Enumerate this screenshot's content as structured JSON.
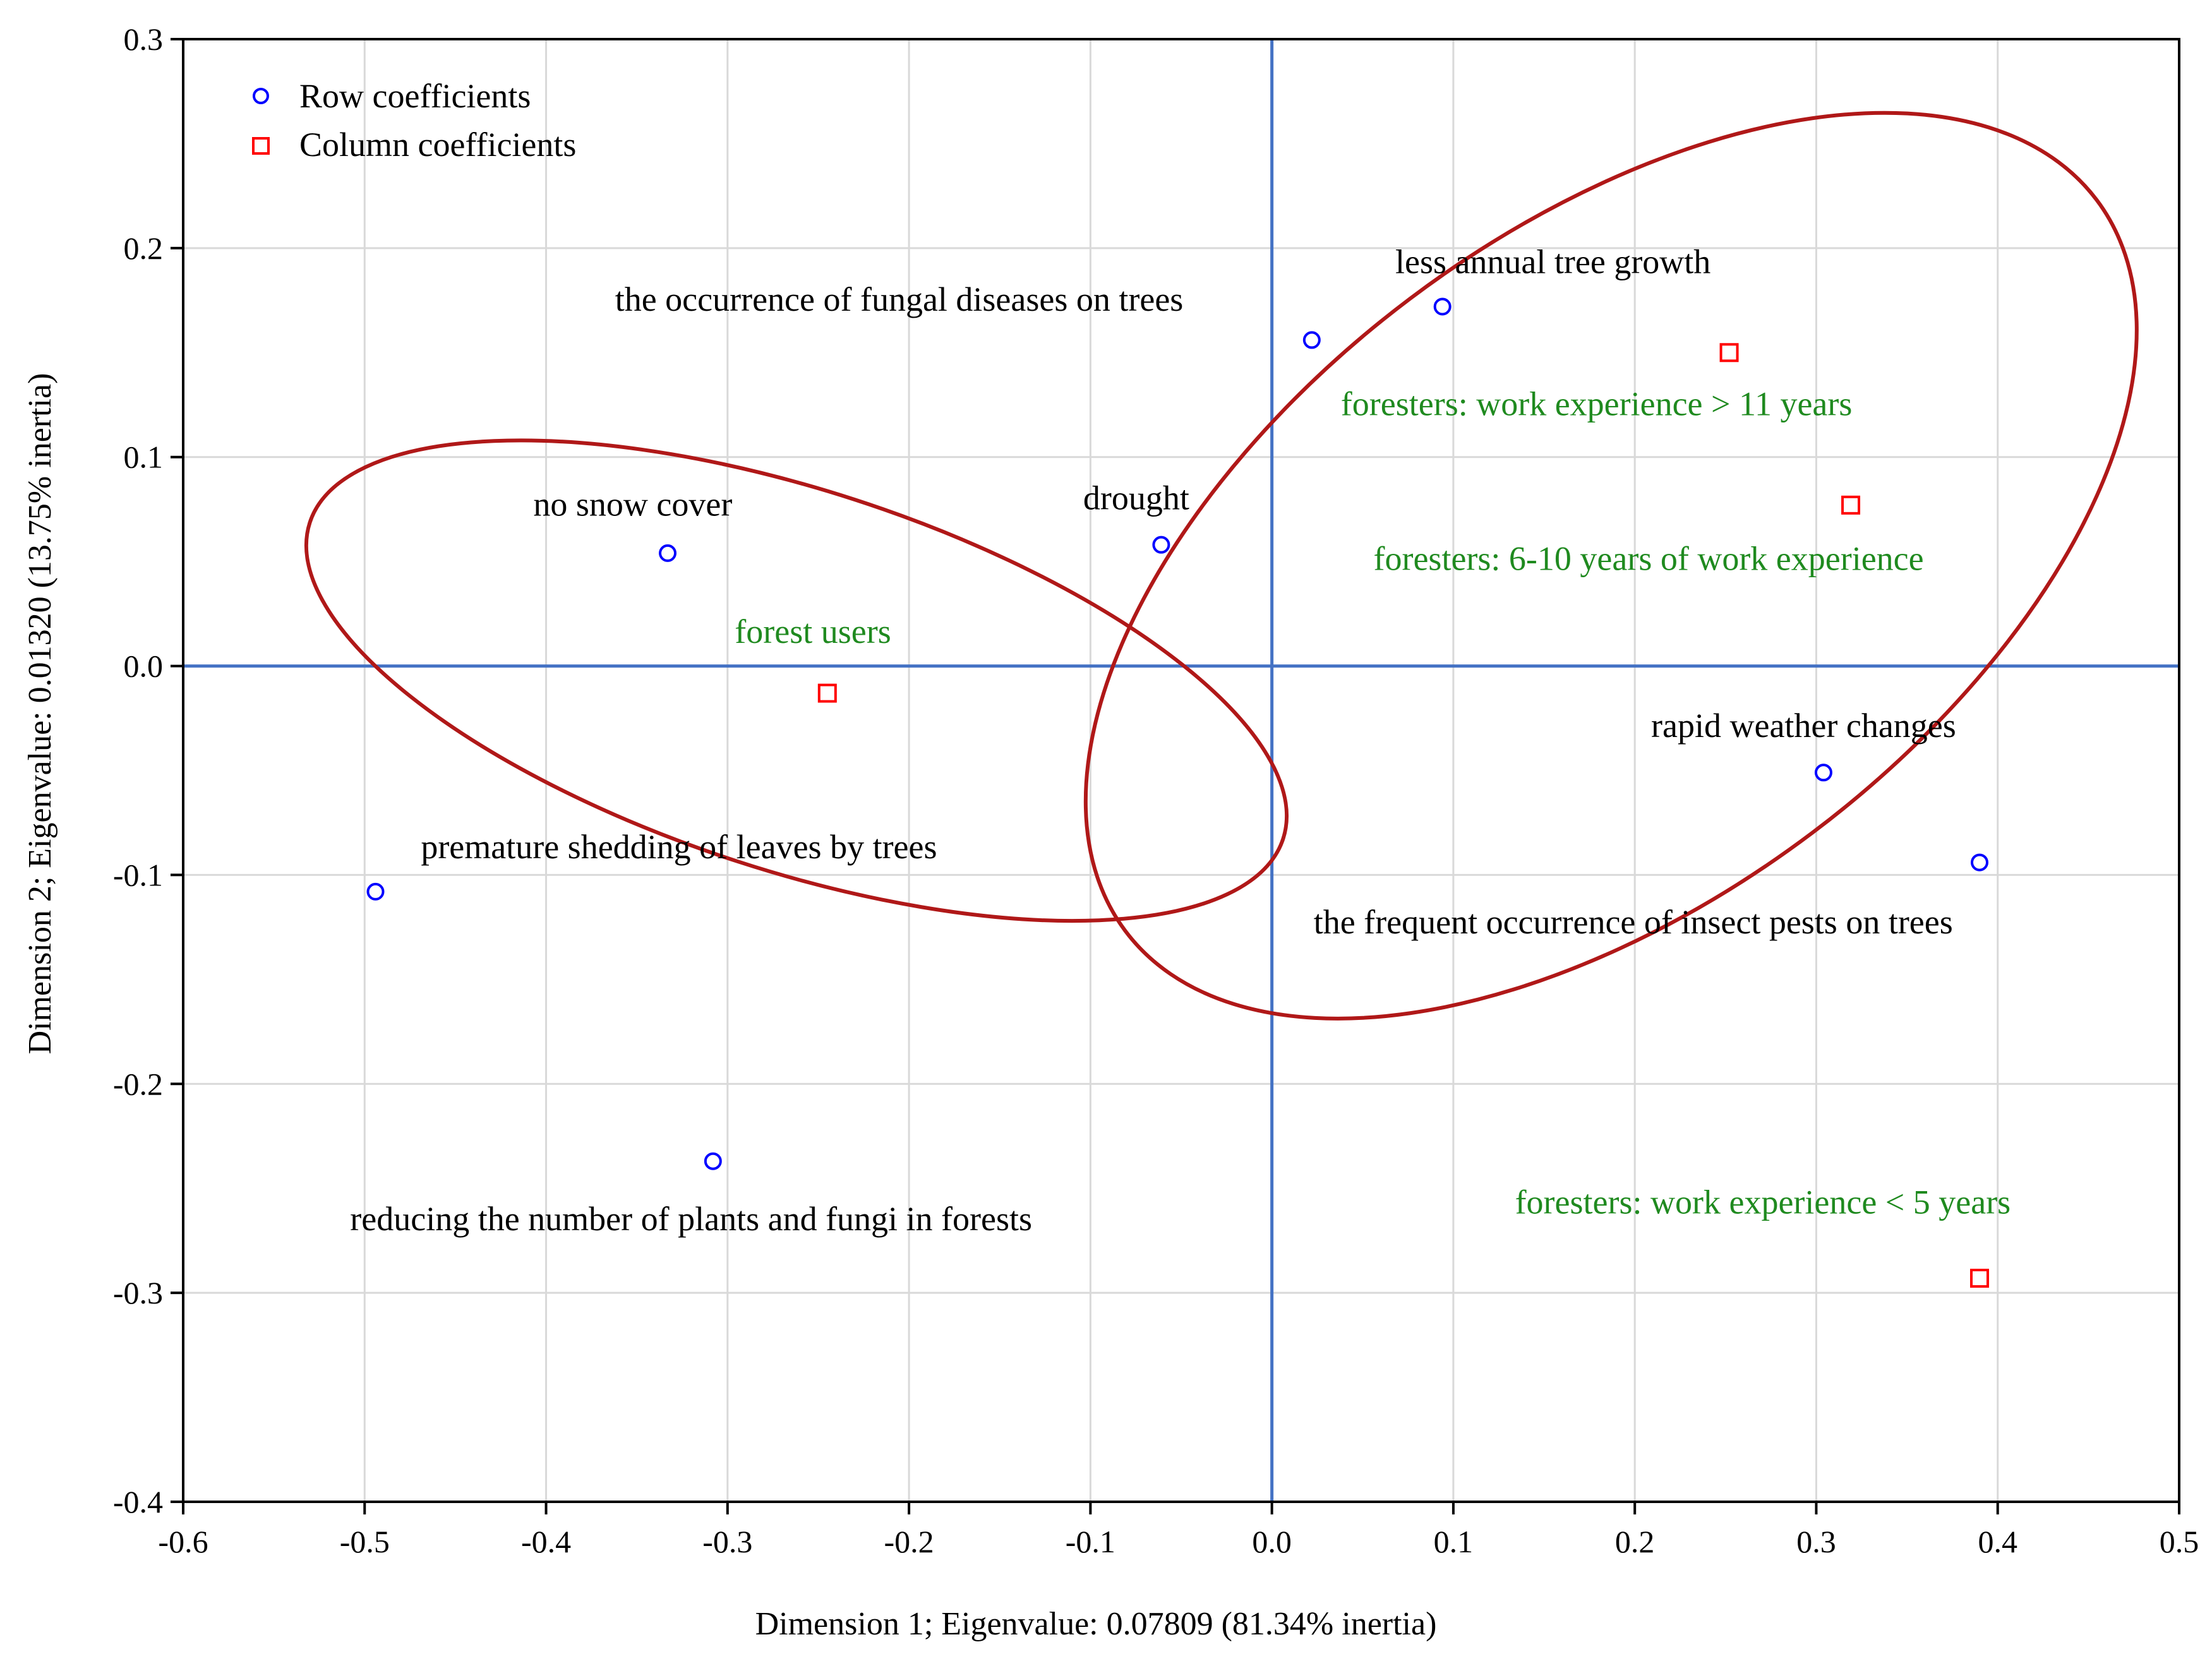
{
  "chart_data": {
    "type": "scatter",
    "xlabel": "Dimension 1; Eigenvalue: 0.07809 (81.34% inertia)",
    "ylabel": "Dimension 2; Eigenvalue: 0.01320 (13.75% inertia)",
    "xlim": [
      -0.6,
      0.5
    ],
    "ylim": [
      -0.4,
      0.3
    ],
    "xticks": [
      "-0.6",
      "-0.5",
      "-0.4",
      "-0.3",
      "-0.2",
      "-0.1",
      "0.0",
      "0.1",
      "0.2",
      "0.3",
      "0.4",
      "0.5"
    ],
    "yticks": [
      "0.3",
      "0.2",
      "0.1",
      "0.0",
      "-0.1",
      "-0.2",
      "-0.3",
      "-0.4"
    ],
    "xtick_values": [
      -0.6,
      -0.5,
      -0.4,
      -0.3,
      -0.2,
      -0.1,
      0.0,
      0.1,
      0.2,
      0.3,
      0.4,
      0.5
    ],
    "ytick_values": [
      0.3,
      0.2,
      0.1,
      0.0,
      -0.1,
      -0.2,
      -0.3,
      -0.4
    ],
    "grid": true,
    "legend": {
      "position": "top-left",
      "entries": [
        {
          "label": "Row coefficients",
          "marker": "circle",
          "color": "#0000ff"
        },
        {
          "label": "Column coefficients",
          "marker": "square",
          "color": "#ff0000"
        }
      ]
    },
    "series": [
      {
        "name": "Row coefficients",
        "marker": "circle",
        "color": "#0000ff",
        "label_color": "#000000",
        "points": [
          {
            "label": "the occurrence of fungal diseases on trees",
            "x": 0.022,
            "y": 0.156,
            "label_x": -0.362,
            "label_y": 0.17
          },
          {
            "label": "less annual tree growth",
            "x": 0.094,
            "y": 0.172,
            "label_x": 0.068,
            "label_y": 0.188
          },
          {
            "label": "no snow cover",
            "x": -0.333,
            "y": 0.054,
            "label_x": -0.407,
            "label_y": 0.072
          },
          {
            "label": "drought",
            "x": -0.061,
            "y": 0.058,
            "label_x": -0.104,
            "label_y": 0.075
          },
          {
            "label": "premature shedding of leaves by trees",
            "x": -0.494,
            "y": -0.108,
            "label_x": -0.469,
            "label_y": -0.092
          },
          {
            "label": "reducing the number of plants and fungi in forests",
            "x": -0.308,
            "y": -0.237,
            "label_x": -0.508,
            "label_y": -0.27
          },
          {
            "label": "rapid weather changes",
            "x": 0.304,
            "y": -0.051,
            "label_x": 0.209,
            "label_y": -0.034
          },
          {
            "label": "the frequent occurrence of insect pests on trees",
            "x": 0.39,
            "y": -0.094,
            "label_x": 0.023,
            "label_y": -0.128
          }
        ]
      },
      {
        "name": "Column coefficients",
        "marker": "square",
        "color": "#ff0000",
        "label_color": "#1f8a1f",
        "points": [
          {
            "label": "foresters: work experience > 11 years",
            "x": 0.252,
            "y": 0.15,
            "label_x": 0.038,
            "label_y": 0.12
          },
          {
            "label": "foresters: 6-10 years of work experience",
            "x": 0.319,
            "y": 0.077,
            "label_x": 0.056,
            "label_y": 0.046
          },
          {
            "label": "forest users",
            "x": -0.245,
            "y": -0.013,
            "label_x": -0.296,
            "label_y": 0.011
          },
          {
            "label": "foresters: work experience < 5 years",
            "x": 0.39,
            "y": -0.293,
            "label_x": 0.134,
            "label_y": -0.262
          }
        ]
      }
    ],
    "ellipses": [
      {
        "name": "left-group",
        "color": "#b01818",
        "cx": -0.262,
        "cy": -0.007,
        "rx": 0.282,
        "ry": 0.091,
        "rotation_deg": 18
      },
      {
        "name": "right-group",
        "color": "#b01818",
        "cx": 0.187,
        "cy": 0.048,
        "rx": 0.335,
        "ry": 0.16,
        "rotation_deg": -37
      }
    ]
  }
}
